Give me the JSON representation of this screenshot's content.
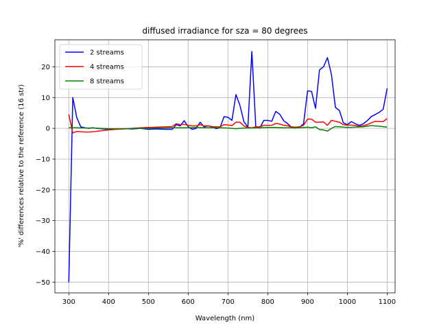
{
  "chart_data": {
    "type": "line",
    "title": "diffused irradiance for sza = 80 degrees",
    "xlabel": "Wavelength (nm)",
    "ylabel": "'%' differences relative to the reference (16 str)",
    "xlim": [
      265,
      1120
    ],
    "ylim": [
      -53.5,
      28.8
    ],
    "xticks": [
      300,
      400,
      500,
      600,
      700,
      800,
      900,
      1000,
      1100
    ],
    "yticks": [
      -50,
      -40,
      -30,
      -20,
      -10,
      0,
      10,
      20
    ],
    "grid": true,
    "legend_position": "upper-left",
    "series": [
      {
        "name": "2 streams",
        "color": "#0000ff",
        "x": [
          300,
          310,
          320,
          330,
          340,
          350,
          360,
          370,
          380,
          390,
          400,
          420,
          440,
          460,
          480,
          500,
          520,
          540,
          560,
          570,
          580,
          590,
          600,
          610,
          620,
          630,
          640,
          650,
          660,
          670,
          680,
          690,
          700,
          710,
          720,
          730,
          740,
          750,
          760,
          770,
          780,
          790,
          800,
          810,
          820,
          830,
          840,
          850,
          860,
          870,
          880,
          890,
          900,
          910,
          920,
          930,
          940,
          950,
          960,
          970,
          980,
          990,
          1000,
          1010,
          1020,
          1030,
          1040,
          1050,
          1060,
          1070,
          1080,
          1090,
          1100
        ],
        "y": [
          -50,
          10,
          3.5,
          0.5,
          0.2,
          0,
          0.2,
          0,
          -0.1,
          -0.2,
          -0.3,
          -0.2,
          -0.1,
          -0.2,
          0,
          -0.3,
          -0.2,
          -0.3,
          -0.3,
          1.2,
          0.8,
          2.5,
          0.5,
          -0.3,
          0,
          2,
          0.5,
          0.8,
          0.5,
          -0.1,
          0.2,
          3.8,
          3.6,
          2.6,
          11,
          7.5,
          2.2,
          0.4,
          25,
          0.3,
          0.1,
          2.6,
          2.6,
          2.3,
          5.5,
          4.6,
          2.5,
          1.5,
          0.3,
          0.1,
          0.4,
          1.5,
          12.2,
          12,
          6.5,
          19,
          20,
          23,
          17.5,
          6.8,
          5.8,
          1.8,
          1.2,
          2.2,
          1.5,
          1,
          1.5,
          2.5,
          3.8,
          4.5,
          5.2,
          6.2,
          13
        ]
      },
      {
        "name": "4 streams",
        "color": "#ff0000",
        "x": [
          300,
          310,
          320,
          330,
          340,
          350,
          360,
          380,
          400,
          420,
          440,
          460,
          480,
          500,
          520,
          540,
          560,
          570,
          580,
          590,
          600,
          610,
          620,
          630,
          640,
          650,
          660,
          670,
          680,
          690,
          700,
          710,
          720,
          730,
          740,
          750,
          760,
          770,
          780,
          790,
          800,
          810,
          820,
          830,
          840,
          850,
          860,
          870,
          880,
          890,
          900,
          910,
          920,
          930,
          940,
          950,
          960,
          970,
          980,
          990,
          1000,
          1010,
          1020,
          1030,
          1040,
          1050,
          1060,
          1070,
          1080,
          1090,
          1100
        ],
        "y": [
          4.5,
          -1.5,
          -1,
          -1.1,
          -1.2,
          -1.2,
          -1.1,
          -0.8,
          -0.5,
          -0.3,
          -0.2,
          0,
          0.2,
          0.3,
          0.4,
          0.5,
          0.6,
          1.5,
          1.2,
          1.3,
          1.0,
          0.8,
          0.8,
          1.2,
          0.8,
          0.8,
          0.6,
          0.5,
          0.5,
          1.2,
          1.1,
          0.9,
          2,
          2,
          0.8,
          0.3,
          0.2,
          0.5,
          0.5,
          1.0,
          1.0,
          1.0,
          1.6,
          1.4,
          1.0,
          0.8,
          0.5,
          0.4,
          0.5,
          1.0,
          3.0,
          3.0,
          2.0,
          2.0,
          2.1,
          1.0,
          2.6,
          2.3,
          2.0,
          1.2,
          1.0,
          1.1,
          0.9,
          0.7,
          0.9,
          1.2,
          1.8,
          2.3,
          2.2,
          2.2,
          3.2
        ]
      },
      {
        "name": "8 streams",
        "color": "#008000",
        "x": [
          300,
          320,
          340,
          360,
          380,
          400,
          420,
          440,
          460,
          480,
          500,
          520,
          540,
          560,
          580,
          600,
          620,
          640,
          660,
          680,
          700,
          720,
          740,
          760,
          780,
          800,
          820,
          840,
          860,
          880,
          900,
          910,
          920,
          930,
          940,
          950,
          960,
          970,
          980,
          1000,
          1020,
          1040,
          1060,
          1080,
          1100
        ],
        "y": [
          0.2,
          0.2,
          0.1,
          0.1,
          0,
          -0.1,
          -0.1,
          -0.1,
          0,
          0,
          0,
          0.1,
          0.1,
          0.2,
          0.2,
          0.2,
          0.3,
          0.2,
          0.2,
          0.2,
          0.1,
          -0.1,
          0.1,
          0.1,
          0.2,
          0.3,
          0.3,
          0.2,
          0.2,
          0.2,
          0.4,
          0.2,
          0.5,
          -0.4,
          -0.5,
          -0.9,
          0,
          0.6,
          0.5,
          0.3,
          0.4,
          0.5,
          0.9,
          0.7,
          0.4
        ]
      }
    ]
  }
}
